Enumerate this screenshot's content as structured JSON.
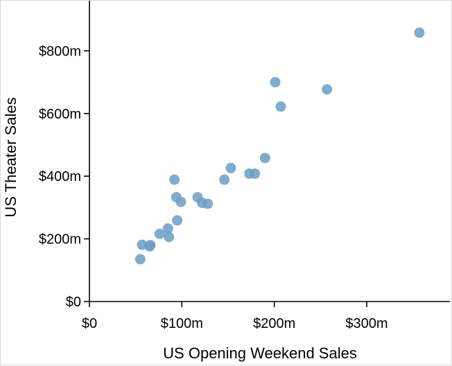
{
  "chart_data": {
    "type": "scatter",
    "title": "",
    "xlabel": "US Opening Weekend Sales",
    "ylabel": "US Theater Sales",
    "xlim": [
      0,
      390
    ],
    "ylim": [
      0,
      960
    ],
    "x_ticks": [
      {
        "value": 0,
        "label": "$0"
      },
      {
        "value": 100,
        "label": "$100m"
      },
      {
        "value": 200,
        "label": "$200m"
      },
      {
        "value": 300,
        "label": "$300m"
      }
    ],
    "y_ticks": [
      {
        "value": 0,
        "label": "$0"
      },
      {
        "value": 200,
        "label": "$200m"
      },
      {
        "value": 400,
        "label": "$400m"
      },
      {
        "value": 600,
        "label": "$600m"
      },
      {
        "value": 800,
        "label": "$800m"
      }
    ],
    "marker_color": "#6a9ec5",
    "grid": false,
    "points": [
      {
        "x": 357,
        "y": 858
      },
      {
        "x": 201,
        "y": 700
      },
      {
        "x": 257,
        "y": 677
      },
      {
        "x": 207,
        "y": 622
      },
      {
        "x": 190,
        "y": 458
      },
      {
        "x": 153,
        "y": 426
      },
      {
        "x": 173,
        "y": 408
      },
      {
        "x": 179,
        "y": 408
      },
      {
        "x": 146,
        "y": 389
      },
      {
        "x": 92,
        "y": 389
      },
      {
        "x": 94,
        "y": 333
      },
      {
        "x": 117,
        "y": 333
      },
      {
        "x": 99,
        "y": 318
      },
      {
        "x": 122,
        "y": 315
      },
      {
        "x": 128,
        "y": 312
      },
      {
        "x": 95,
        "y": 259
      },
      {
        "x": 85,
        "y": 233
      },
      {
        "x": 76,
        "y": 216
      },
      {
        "x": 86,
        "y": 206
      },
      {
        "x": 57,
        "y": 181
      },
      {
        "x": 66,
        "y": 180
      },
      {
        "x": 65,
        "y": 176
      },
      {
        "x": 55,
        "y": 135
      }
    ]
  }
}
